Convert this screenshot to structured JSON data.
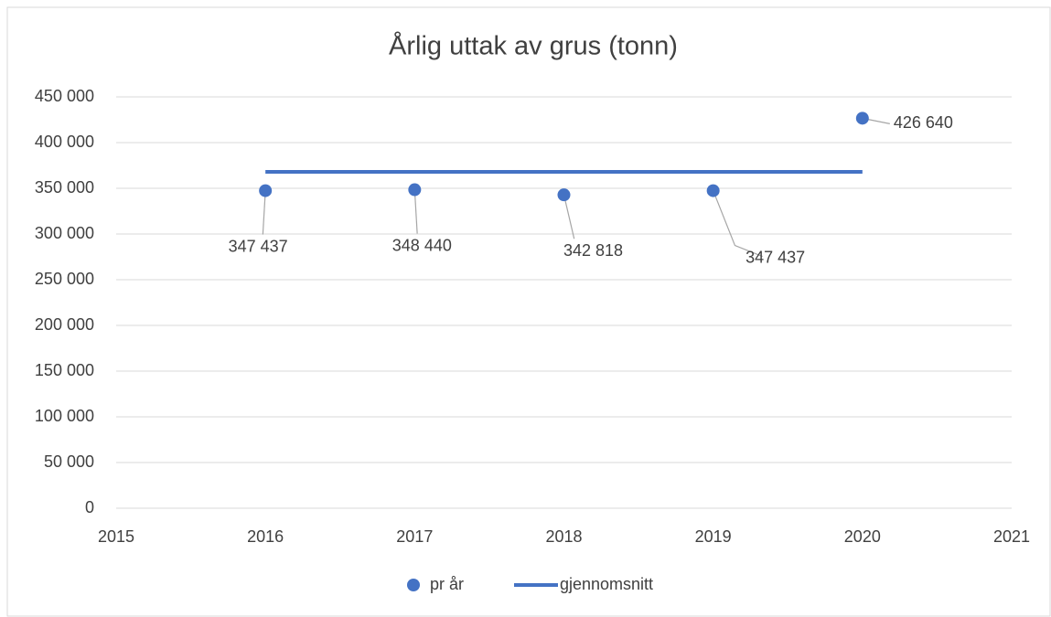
{
  "chart_data": {
    "type": "scatter",
    "title": "Årlig uttak av grus (tonn)",
    "series": [
      {
        "name": "pr år",
        "type": "scatter",
        "color": "#4472c4",
        "x": [
          2016,
          2017,
          2018,
          2019,
          2020
        ],
        "values": [
          347437,
          348440,
          342818,
          347437,
          426640
        ],
        "value_labels": [
          "347 437",
          "348 440",
          "342 818",
          "347 437",
          "426 640"
        ]
      },
      {
        "name": "gjennomsnitt",
        "type": "line",
        "color": "#4472c4",
        "x": [
          2016,
          2020
        ],
        "values": [
          368000,
          368000
        ]
      }
    ],
    "xlim": [
      2015,
      2021
    ],
    "xticks": [
      2015,
      2016,
      2017,
      2018,
      2019,
      2020,
      2021
    ],
    "ylim": [
      0,
      450000
    ],
    "yticks": [
      0,
      {
        "value": 50000,
        "label": "50 000"
      },
      {
        "value": 100000,
        "label": "100 000"
      },
      {
        "value": 150000,
        "label": "150 000"
      },
      {
        "value": 200000,
        "label": "200 000"
      },
      {
        "value": 250000,
        "label": "250 000"
      },
      {
        "value": 300000,
        "label": "300 000"
      },
      {
        "value": 350000,
        "label": "350 000"
      },
      {
        "value": 400000,
        "label": "400 000"
      },
      {
        "value": 450000,
        "label": "450 000"
      }
    ],
    "grid": true,
    "legend": "bottom"
  }
}
